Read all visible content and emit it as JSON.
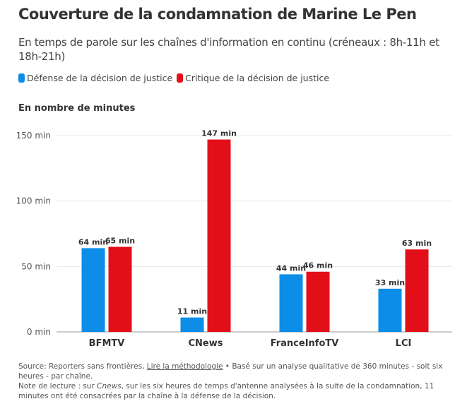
{
  "title": "Couverture de la condamnation de Marine Le Pen",
  "subtitle": "En temps de parole sur les chaînes d'information en continu (créneaux : 8h-11h et 18h-21h)",
  "chart_data": {
    "type": "bar",
    "ylabel": "En nombre de minutes",
    "categories": [
      "BFMTV",
      "CNews",
      "FranceInfoTV",
      "LCI"
    ],
    "series": [
      {
        "name": "Défense de la décision de justice",
        "color": "#0b8de8",
        "values": [
          64,
          11,
          44,
          33
        ]
      },
      {
        "name": "Critique de la décision de justice",
        "color": "#e30f18",
        "values": [
          65,
          147,
          46,
          63
        ]
      }
    ],
    "value_suffix": " min",
    "yticks": [
      0,
      50,
      100,
      150
    ],
    "ytick_labels": [
      "0 min",
      "50 min",
      "100 min",
      "150 min"
    ],
    "ylim": [
      0,
      150
    ],
    "grid": true,
    "legend": "top-left"
  },
  "footer": {
    "source_prefix": "Source: Reporters sans frontières, ",
    "method_link": "Lire la méthodologie",
    "source_suffix": " • Basé sur un analyse qualitative de 360 minutes - soit six heures - par chaîne.",
    "note_prefix": "Note de lecture : sur ",
    "note_channel": "Cnews",
    "note_suffix": ", sur les six heures de temps d'antenne analysées à la suite de la condamnation, 11 minutes ont été consacrées par la chaîne à la défense de la décision."
  }
}
